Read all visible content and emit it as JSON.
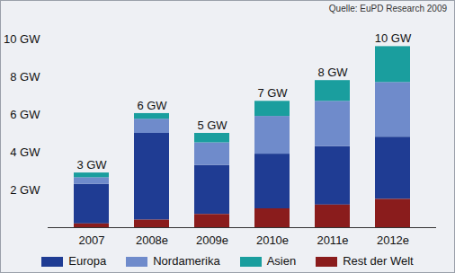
{
  "chart_data": {
    "type": "bar",
    "stacked": true,
    "source": "Quelle: EuPD Research 2009",
    "categories": [
      "2007",
      "2008e",
      "2009e",
      "2010e",
      "2011e",
      "2012e"
    ],
    "series": [
      {
        "name": "Europa",
        "color": "#1f3c93",
        "values": [
          2.1,
          4.6,
          2.6,
          2.9,
          3.1,
          3.3
        ]
      },
      {
        "name": "Nordamerika",
        "color": "#6f8bcb",
        "values": [
          0.35,
          0.75,
          1.2,
          2.0,
          2.4,
          2.9
        ]
      },
      {
        "name": "Asien",
        "color": "#1a9e9e",
        "values": [
          0.25,
          0.3,
          0.5,
          0.8,
          1.1,
          1.9
        ]
      },
      {
        "name": "Rest der Welt",
        "color": "#8a1c1c",
        "values": [
          0.2,
          0.4,
          0.7,
          1.0,
          1.2,
          1.5
        ]
      }
    ],
    "total_labels": [
      "3 GW",
      "6 GW",
      "5 GW",
      "7 GW",
      "8 GW",
      "10 GW"
    ],
    "ylim": [
      0,
      10
    ],
    "yticks": [
      {
        "value": 2,
        "label": "2 GW"
      },
      {
        "value": 4,
        "label": "4 GW"
      },
      {
        "value": 6,
        "label": "6 GW"
      },
      {
        "value": 8,
        "label": "8 GW"
      },
      {
        "value": 10,
        "label": "10 GW"
      }
    ],
    "grid": false,
    "legend": "bottom"
  }
}
